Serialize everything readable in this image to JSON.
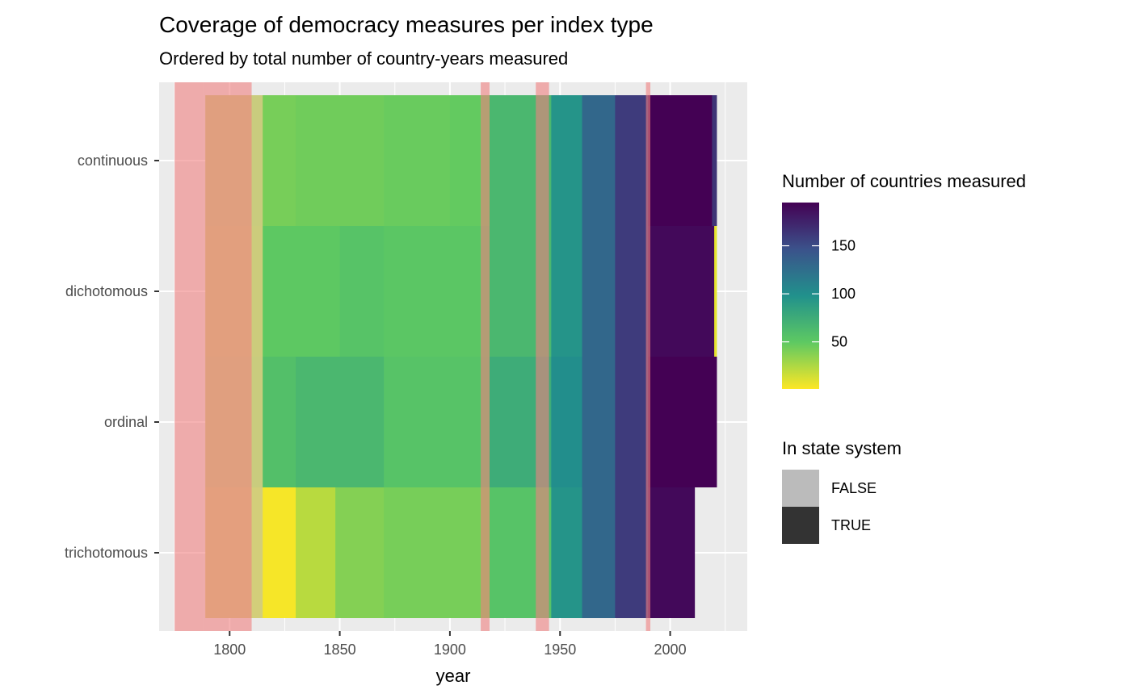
{
  "chart_data": {
    "type": "heatmap",
    "title": "Coverage of democracy measures per index type",
    "subtitle": "Ordered by total number of country-years measured",
    "xlabel": "year",
    "ylabel": "",
    "xlim": [
      1768,
      2035
    ],
    "x_ticks": [
      1800,
      1850,
      1900,
      1950,
      2000
    ],
    "categories": [
      "continuous",
      "dichotomous",
      "ordinal",
      "trichotomous"
    ],
    "grid": true,
    "legend_placement": "right",
    "color_legend": {
      "title": "Number of countries measured",
      "ticks": [
        50,
        100,
        150
      ],
      "range": [
        1,
        195
      ],
      "colors": [
        "#fde725",
        "#5ec962",
        "#21918c",
        "#3b528b",
        "#440154"
      ]
    },
    "state_system_legend": {
      "title": "In state system",
      "items": [
        {
          "label": "FALSE",
          "color": "#bbbbbb"
        },
        {
          "label": "TRUE",
          "color": "#333333"
        }
      ]
    },
    "series": [
      {
        "category": "continuous",
        "segments": [
          {
            "start": 1789,
            "end": 1815,
            "value": 12
          },
          {
            "start": 1815,
            "end": 1830,
            "value": 42
          },
          {
            "start": 1830,
            "end": 1870,
            "value": 44
          },
          {
            "start": 1870,
            "end": 1900,
            "value": 46
          },
          {
            "start": 1900,
            "end": 1918,
            "value": 48
          },
          {
            "start": 1918,
            "end": 1946,
            "value": 65
          },
          {
            "start": 1946,
            "end": 1960,
            "value": 95
          },
          {
            "start": 1960,
            "end": 1975,
            "value": 130
          },
          {
            "start": 1975,
            "end": 1990,
            "value": 160
          },
          {
            "start": 1990,
            "end": 2019,
            "value": 195
          },
          {
            "start": 2019,
            "end": 2021,
            "value": 165
          }
        ]
      },
      {
        "category": "dichotomous",
        "segments": [
          {
            "start": 1789,
            "end": 1815,
            "value": 10
          },
          {
            "start": 1815,
            "end": 1850,
            "value": 50
          },
          {
            "start": 1850,
            "end": 1870,
            "value": 55
          },
          {
            "start": 1870,
            "end": 1918,
            "value": 52
          },
          {
            "start": 1918,
            "end": 1946,
            "value": 65
          },
          {
            "start": 1946,
            "end": 1960,
            "value": 95
          },
          {
            "start": 1960,
            "end": 1975,
            "value": 130
          },
          {
            "start": 1975,
            "end": 1990,
            "value": 160
          },
          {
            "start": 1990,
            "end": 2020,
            "value": 190
          },
          {
            "start": 2020,
            "end": 2021,
            "value": 8
          }
        ]
      },
      {
        "category": "ordinal",
        "segments": [
          {
            "start": 1789,
            "end": 1815,
            "value": 12
          },
          {
            "start": 1815,
            "end": 1830,
            "value": 58
          },
          {
            "start": 1830,
            "end": 1870,
            "value": 65
          },
          {
            "start": 1870,
            "end": 1918,
            "value": 55
          },
          {
            "start": 1918,
            "end": 1946,
            "value": 75
          },
          {
            "start": 1946,
            "end": 1960,
            "value": 100
          },
          {
            "start": 1960,
            "end": 1975,
            "value": 130
          },
          {
            "start": 1975,
            "end": 1990,
            "value": 160
          },
          {
            "start": 1990,
            "end": 2021,
            "value": 195
          }
        ]
      },
      {
        "category": "trichotomous",
        "segments": [
          {
            "start": 1789,
            "end": 1815,
            "value": 5
          },
          {
            "start": 1815,
            "end": 1830,
            "value": 3
          },
          {
            "start": 1830,
            "end": 1848,
            "value": 22
          },
          {
            "start": 1848,
            "end": 1870,
            "value": 38
          },
          {
            "start": 1870,
            "end": 1918,
            "value": 42
          },
          {
            "start": 1918,
            "end": 1946,
            "value": 55
          },
          {
            "start": 1946,
            "end": 1960,
            "value": 95
          },
          {
            "start": 1960,
            "end": 1975,
            "value": 130
          },
          {
            "start": 1975,
            "end": 1990,
            "value": 160
          },
          {
            "start": 1990,
            "end": 2011,
            "value": 190
          }
        ]
      }
    ],
    "state_system_false_periods": [
      {
        "start": 1789,
        "end": 1815
      }
    ],
    "highlight_periods": [
      {
        "start": 1775,
        "end": 1788
      },
      {
        "start": 1788,
        "end": 1810
      },
      {
        "start": 1914,
        "end": 1918
      },
      {
        "start": 1939,
        "end": 1945
      },
      {
        "start": 1989,
        "end": 1991
      }
    ],
    "highlight_color": "#f08080"
  }
}
